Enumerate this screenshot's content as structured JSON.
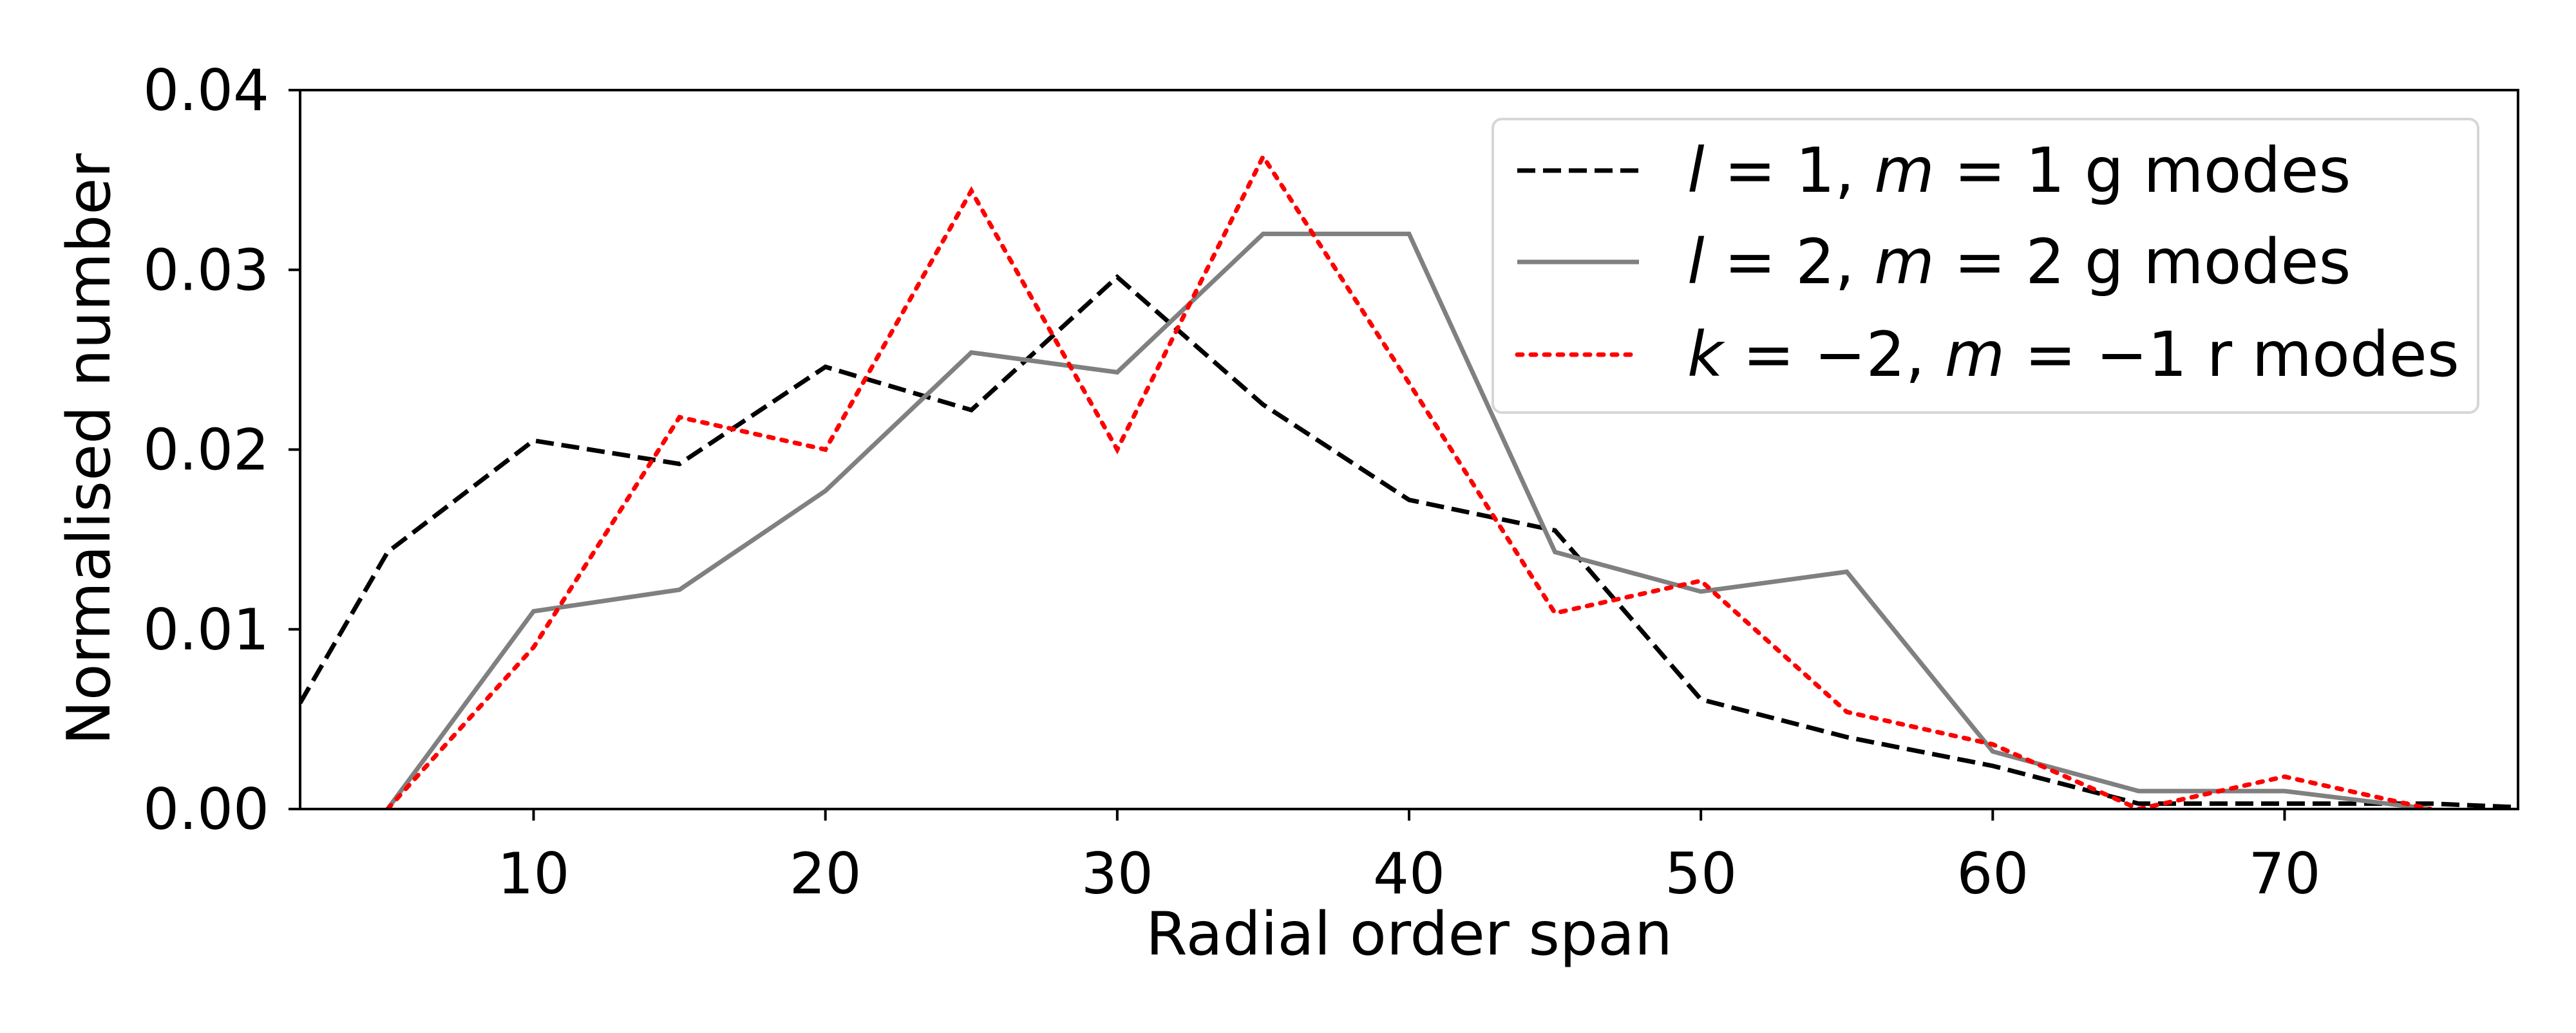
{
  "chart_data": {
    "type": "line",
    "title": "",
    "xlabel": "Radial order span",
    "ylabel": "Normalised number",
    "xlim": [
      2,
      78
    ],
    "ylim": [
      0,
      0.04
    ],
    "xticks": [
      10,
      20,
      30,
      40,
      50,
      60,
      70
    ],
    "xtick_labels": [
      "10",
      "20",
      "30",
      "40",
      "50",
      "60",
      "70"
    ],
    "yticks": [
      0,
      0.01,
      0.02,
      0.03,
      0.04
    ],
    "ytick_labels": [
      "0.00",
      "0.01",
      "0.02",
      "0.03",
      "0.04"
    ],
    "grid": false,
    "legend_position": "top-right",
    "series": [
      {
        "name": "l = 1, m = 1 g modes",
        "color": "#000000",
        "style": "dashed",
        "x": [
          2,
          5,
          10,
          15,
          20,
          25,
          30,
          35,
          40,
          45,
          50,
          55,
          60,
          65,
          70,
          75,
          78
        ],
        "y": [
          0.0059,
          0.0143,
          0.0205,
          0.0192,
          0.0246,
          0.0222,
          0.0296,
          0.0225,
          0.0172,
          0.0155,
          0.0061,
          0.004,
          0.0024,
          0.0003,
          0.0003,
          0.0003,
          0.0001
        ]
      },
      {
        "name": "l = 2, m = 2 g modes",
        "color": "#808080",
        "style": "solid",
        "x": [
          5,
          10,
          15,
          20,
          25,
          30,
          35,
          40,
          45,
          50,
          55,
          60,
          65,
          70,
          75
        ],
        "y": [
          0.0,
          0.011,
          0.0122,
          0.0177,
          0.0254,
          0.0243,
          0.032,
          0.032,
          0.0143,
          0.0121,
          0.0132,
          0.0032,
          0.001,
          0.001,
          0.0
        ]
      },
      {
        "name": "k = −2, m = −1 r modes",
        "color": "#ff0000",
        "style": "dotted",
        "x": [
          5,
          10,
          15,
          20,
          25,
          30,
          35,
          40,
          45,
          50,
          55,
          60,
          65,
          70,
          75
        ],
        "y": [
          0.0,
          0.009,
          0.0218,
          0.02,
          0.0344,
          0.02,
          0.0363,
          0.0237,
          0.0109,
          0.0127,
          0.0054,
          0.0036,
          0.0,
          0.0018,
          0.0
        ]
      }
    ]
  }
}
